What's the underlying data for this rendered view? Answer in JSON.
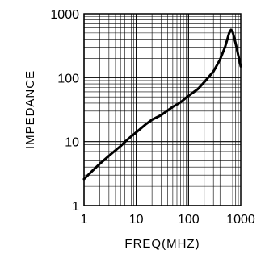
{
  "chart_data": {
    "type": "line",
    "title": "",
    "xlabel": "FREQ(MHZ)",
    "ylabel": "IMPEDANCE",
    "xscale": "log",
    "yscale": "log",
    "xlim": [
      1,
      1000
    ],
    "ylim": [
      1,
      1000
    ],
    "x_ticks": [
      1,
      10,
      100,
      1000
    ],
    "x_tick_labels": [
      "1",
      "10",
      "100",
      "1000"
    ],
    "y_ticks": [
      1,
      10,
      100,
      1000
    ],
    "y_tick_labels": [
      "1",
      "10",
      "100",
      "1000"
    ],
    "grid": true,
    "series": [
      {
        "x": [
          1,
          1.5,
          2,
          3,
          5,
          7,
          10,
          15,
          20,
          30,
          50,
          70,
          100,
          150,
          200,
          300,
          400,
          500,
          600,
          650,
          700,
          800,
          900,
          1000
        ],
        "y": [
          2.6,
          3.6,
          4.5,
          6.0,
          8.5,
          11,
          14,
          18.5,
          22,
          26,
          35,
          41,
          52,
          66,
          85,
          125,
          190,
          300,
          500,
          560,
          520,
          340,
          220,
          150
        ]
      }
    ]
  }
}
